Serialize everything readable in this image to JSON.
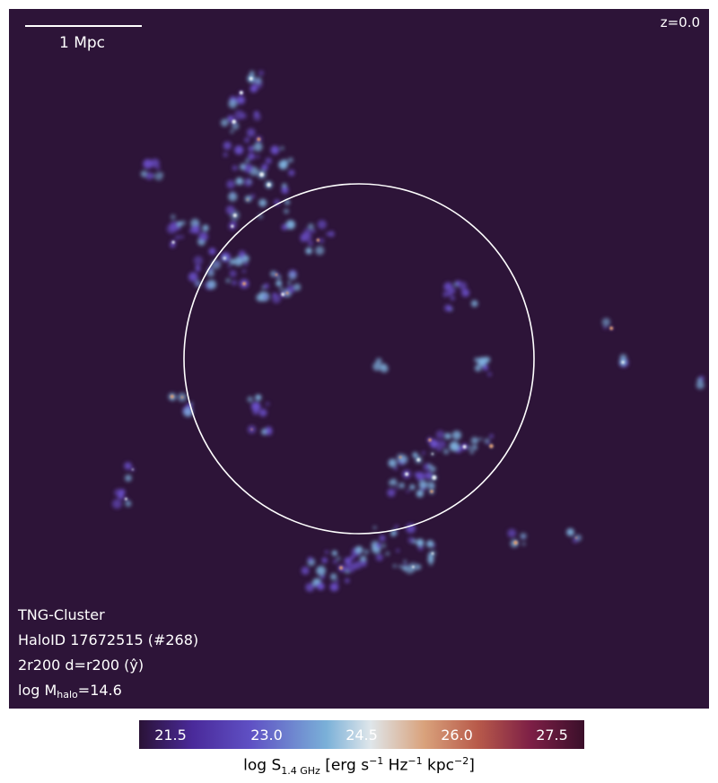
{
  "scalebar": {
    "label": "1 Mpc"
  },
  "redshift": "z=0.0",
  "info": {
    "simulation": "TNG-Cluster",
    "halo": "HaloID 17672515 (#268)",
    "projection": "2r200 d=r200 (ŷ)",
    "mass_prefix": "log M",
    "mass_sub": "halo",
    "mass_value": "=14.6"
  },
  "colorbar": {
    "ticks": [
      "21.5",
      "23.0",
      "24.5",
      "26.0",
      "27.5"
    ],
    "label_prefix": "log S",
    "label_sub": "1.4 GHz",
    "label_units": " [erg s",
    "sup1": "−1",
    "label_hz": " Hz",
    "sup2": "−1",
    "label_kpc": " kpc",
    "sup3": "−2",
    "label_end": "]"
  },
  "colors": {
    "background": "#2d1438",
    "circle": "#ffffff",
    "emission_low": "#6a4fc8",
    "emission_mid": "#7fb2de",
    "emission_high": "#d99a74"
  }
}
